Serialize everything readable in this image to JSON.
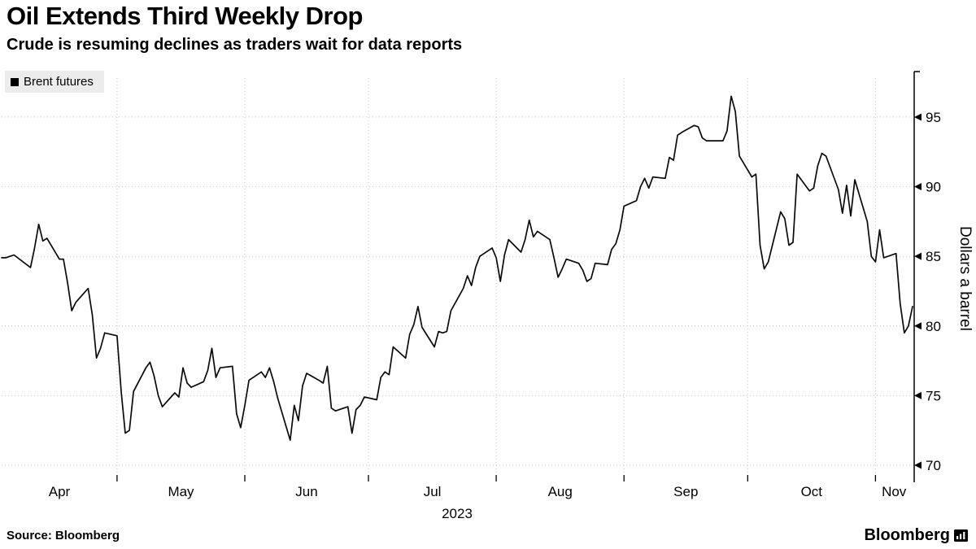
{
  "header": {
    "title": "Oil Extends Third Weekly Drop",
    "subtitle": "Crude is resuming declines as traders wait for data reports"
  },
  "legend": {
    "label": "Brent futures",
    "swatch_color": "#000000",
    "background": "#ececec"
  },
  "axes": {
    "y_title": "Dollars a barrel",
    "y_ticks": [
      70,
      75,
      80,
      85,
      90,
      95
    ],
    "x_labels": [
      "Apr",
      "May",
      "Jun",
      "Jul",
      "Aug",
      "Sep",
      "Oct",
      "Nov"
    ],
    "x_year": "2023"
  },
  "footer": {
    "source_label": "Source:",
    "source_value": "Bloomberg",
    "brand": "Bloomberg"
  },
  "chart_data": {
    "type": "line",
    "title": "Oil Extends Third Weekly Drop",
    "subtitle": "Crude is resuming declines as traders wait for data reports",
    "ylabel": "Dollars a barrel",
    "ylim": [
      69.3,
      97.8
    ],
    "y_ticks": [
      70,
      75,
      80,
      85,
      90,
      95
    ],
    "x_tick_months": [
      "Apr",
      "May",
      "Jun",
      "Jul",
      "Aug",
      "Sep",
      "Oct",
      "Nov"
    ],
    "year": "2023",
    "grid": "dotted",
    "legend_position": "top-left",
    "series": [
      {
        "name": "Brent futures",
        "color": "#0a0a0a",
        "dates": [
          "2023-04-03",
          "2023-04-04",
          "2023-04-05",
          "2023-04-06",
          "2023-04-10",
          "2023-04-11",
          "2023-04-12",
          "2023-04-13",
          "2023-04-14",
          "2023-04-17",
          "2023-04-18",
          "2023-04-19",
          "2023-04-20",
          "2023-04-21",
          "2023-04-24",
          "2023-04-25",
          "2023-04-26",
          "2023-04-27",
          "2023-04-28",
          "2023-05-01",
          "2023-05-02",
          "2023-05-03",
          "2023-05-04",
          "2023-05-05",
          "2023-05-08",
          "2023-05-09",
          "2023-05-10",
          "2023-05-11",
          "2023-05-12",
          "2023-05-15",
          "2023-05-16",
          "2023-05-17",
          "2023-05-18",
          "2023-05-19",
          "2023-05-22",
          "2023-05-23",
          "2023-05-24",
          "2023-05-25",
          "2023-05-26",
          "2023-05-29",
          "2023-05-30",
          "2023-05-31",
          "2023-06-01",
          "2023-06-02",
          "2023-06-05",
          "2023-06-06",
          "2023-06-07",
          "2023-06-08",
          "2023-06-09",
          "2023-06-12",
          "2023-06-13",
          "2023-06-14",
          "2023-06-15",
          "2023-06-16",
          "2023-06-19",
          "2023-06-20",
          "2023-06-21",
          "2023-06-22",
          "2023-06-23",
          "2023-06-26",
          "2023-06-27",
          "2023-06-28",
          "2023-06-29",
          "2023-06-30",
          "2023-07-03",
          "2023-07-04",
          "2023-07-05",
          "2023-07-06",
          "2023-07-07",
          "2023-07-10",
          "2023-07-11",
          "2023-07-12",
          "2023-07-13",
          "2023-07-14",
          "2023-07-17",
          "2023-07-18",
          "2023-07-19",
          "2023-07-20",
          "2023-07-21",
          "2023-07-24",
          "2023-07-25",
          "2023-07-26",
          "2023-07-27",
          "2023-07-28",
          "2023-07-31",
          "2023-08-01",
          "2023-08-02",
          "2023-08-03",
          "2023-08-04",
          "2023-08-07",
          "2023-08-08",
          "2023-08-09",
          "2023-08-10",
          "2023-08-11",
          "2023-08-14",
          "2023-08-15",
          "2023-08-16",
          "2023-08-17",
          "2023-08-18",
          "2023-08-21",
          "2023-08-22",
          "2023-08-23",
          "2023-08-24",
          "2023-08-25",
          "2023-08-28",
          "2023-08-29",
          "2023-08-30",
          "2023-08-31",
          "2023-09-01",
          "2023-09-04",
          "2023-09-05",
          "2023-09-06",
          "2023-09-07",
          "2023-09-08",
          "2023-09-11",
          "2023-09-12",
          "2023-09-13",
          "2023-09-14",
          "2023-09-15",
          "2023-09-18",
          "2023-09-19",
          "2023-09-20",
          "2023-09-21",
          "2023-09-22",
          "2023-09-25",
          "2023-09-26",
          "2023-09-27",
          "2023-09-28",
          "2023-09-29",
          "2023-10-02",
          "2023-10-03",
          "2023-10-04",
          "2023-10-05",
          "2023-10-06",
          "2023-10-09",
          "2023-10-10",
          "2023-10-11",
          "2023-10-12",
          "2023-10-13",
          "2023-10-16",
          "2023-10-17",
          "2023-10-18",
          "2023-10-19",
          "2023-10-20",
          "2023-10-23",
          "2023-10-24",
          "2023-10-25",
          "2023-10-26",
          "2023-10-27",
          "2023-10-30",
          "2023-10-31",
          "2023-11-01",
          "2023-11-02",
          "2023-11-03",
          "2023-11-06",
          "2023-11-07",
          "2023-11-08",
          "2023-11-09",
          "2023-11-10"
        ],
        "values": [
          84.9,
          84.9,
          85.0,
          85.1,
          84.2,
          85.6,
          87.3,
          86.1,
          86.3,
          84.8,
          84.8,
          83.1,
          81.1,
          81.7,
          82.7,
          80.8,
          77.7,
          78.4,
          79.5,
          79.3,
          75.3,
          72.3,
          72.5,
          75.3,
          77.0,
          77.4,
          76.4,
          75.0,
          74.2,
          75.2,
          74.9,
          77.0,
          75.9,
          75.6,
          76.0,
          76.8,
          78.4,
          76.3,
          77.0,
          77.1,
          73.7,
          72.7,
          74.3,
          76.1,
          76.7,
          76.3,
          77.0,
          76.0,
          74.8,
          71.8,
          74.3,
          73.2,
          75.7,
          76.6,
          76.1,
          75.9,
          77.1,
          74.1,
          73.9,
          74.2,
          72.3,
          74.0,
          74.3,
          74.9,
          74.7,
          76.3,
          76.7,
          76.5,
          78.5,
          77.7,
          79.4,
          80.1,
          81.4,
          79.9,
          78.5,
          79.6,
          79.5,
          79.6,
          81.1,
          82.7,
          83.6,
          82.9,
          84.2,
          85.0,
          85.6,
          84.9,
          83.2,
          85.1,
          86.2,
          85.3,
          86.2,
          87.6,
          86.4,
          86.8,
          86.2,
          84.9,
          83.5,
          84.1,
          84.8,
          84.5,
          84.0,
          83.2,
          83.4,
          84.5,
          84.4,
          85.5,
          85.9,
          86.9,
          88.6,
          89.0,
          90.0,
          90.6,
          89.9,
          90.7,
          90.6,
          92.1,
          91.9,
          93.7,
          93.9,
          94.4,
          94.3,
          93.5,
          93.3,
          93.3,
          93.3,
          94.0,
          96.5,
          95.4,
          92.2,
          90.7,
          90.9,
          85.8,
          84.1,
          84.6,
          88.2,
          87.7,
          85.8,
          86.0,
          90.9,
          89.7,
          89.9,
          91.5,
          92.4,
          92.2,
          89.8,
          88.1,
          90.1,
          87.9,
          90.5,
          87.5,
          85.0,
          84.6,
          86.9,
          84.9,
          85.2,
          81.6,
          79.5,
          80.0,
          81.4
        ]
      }
    ]
  }
}
